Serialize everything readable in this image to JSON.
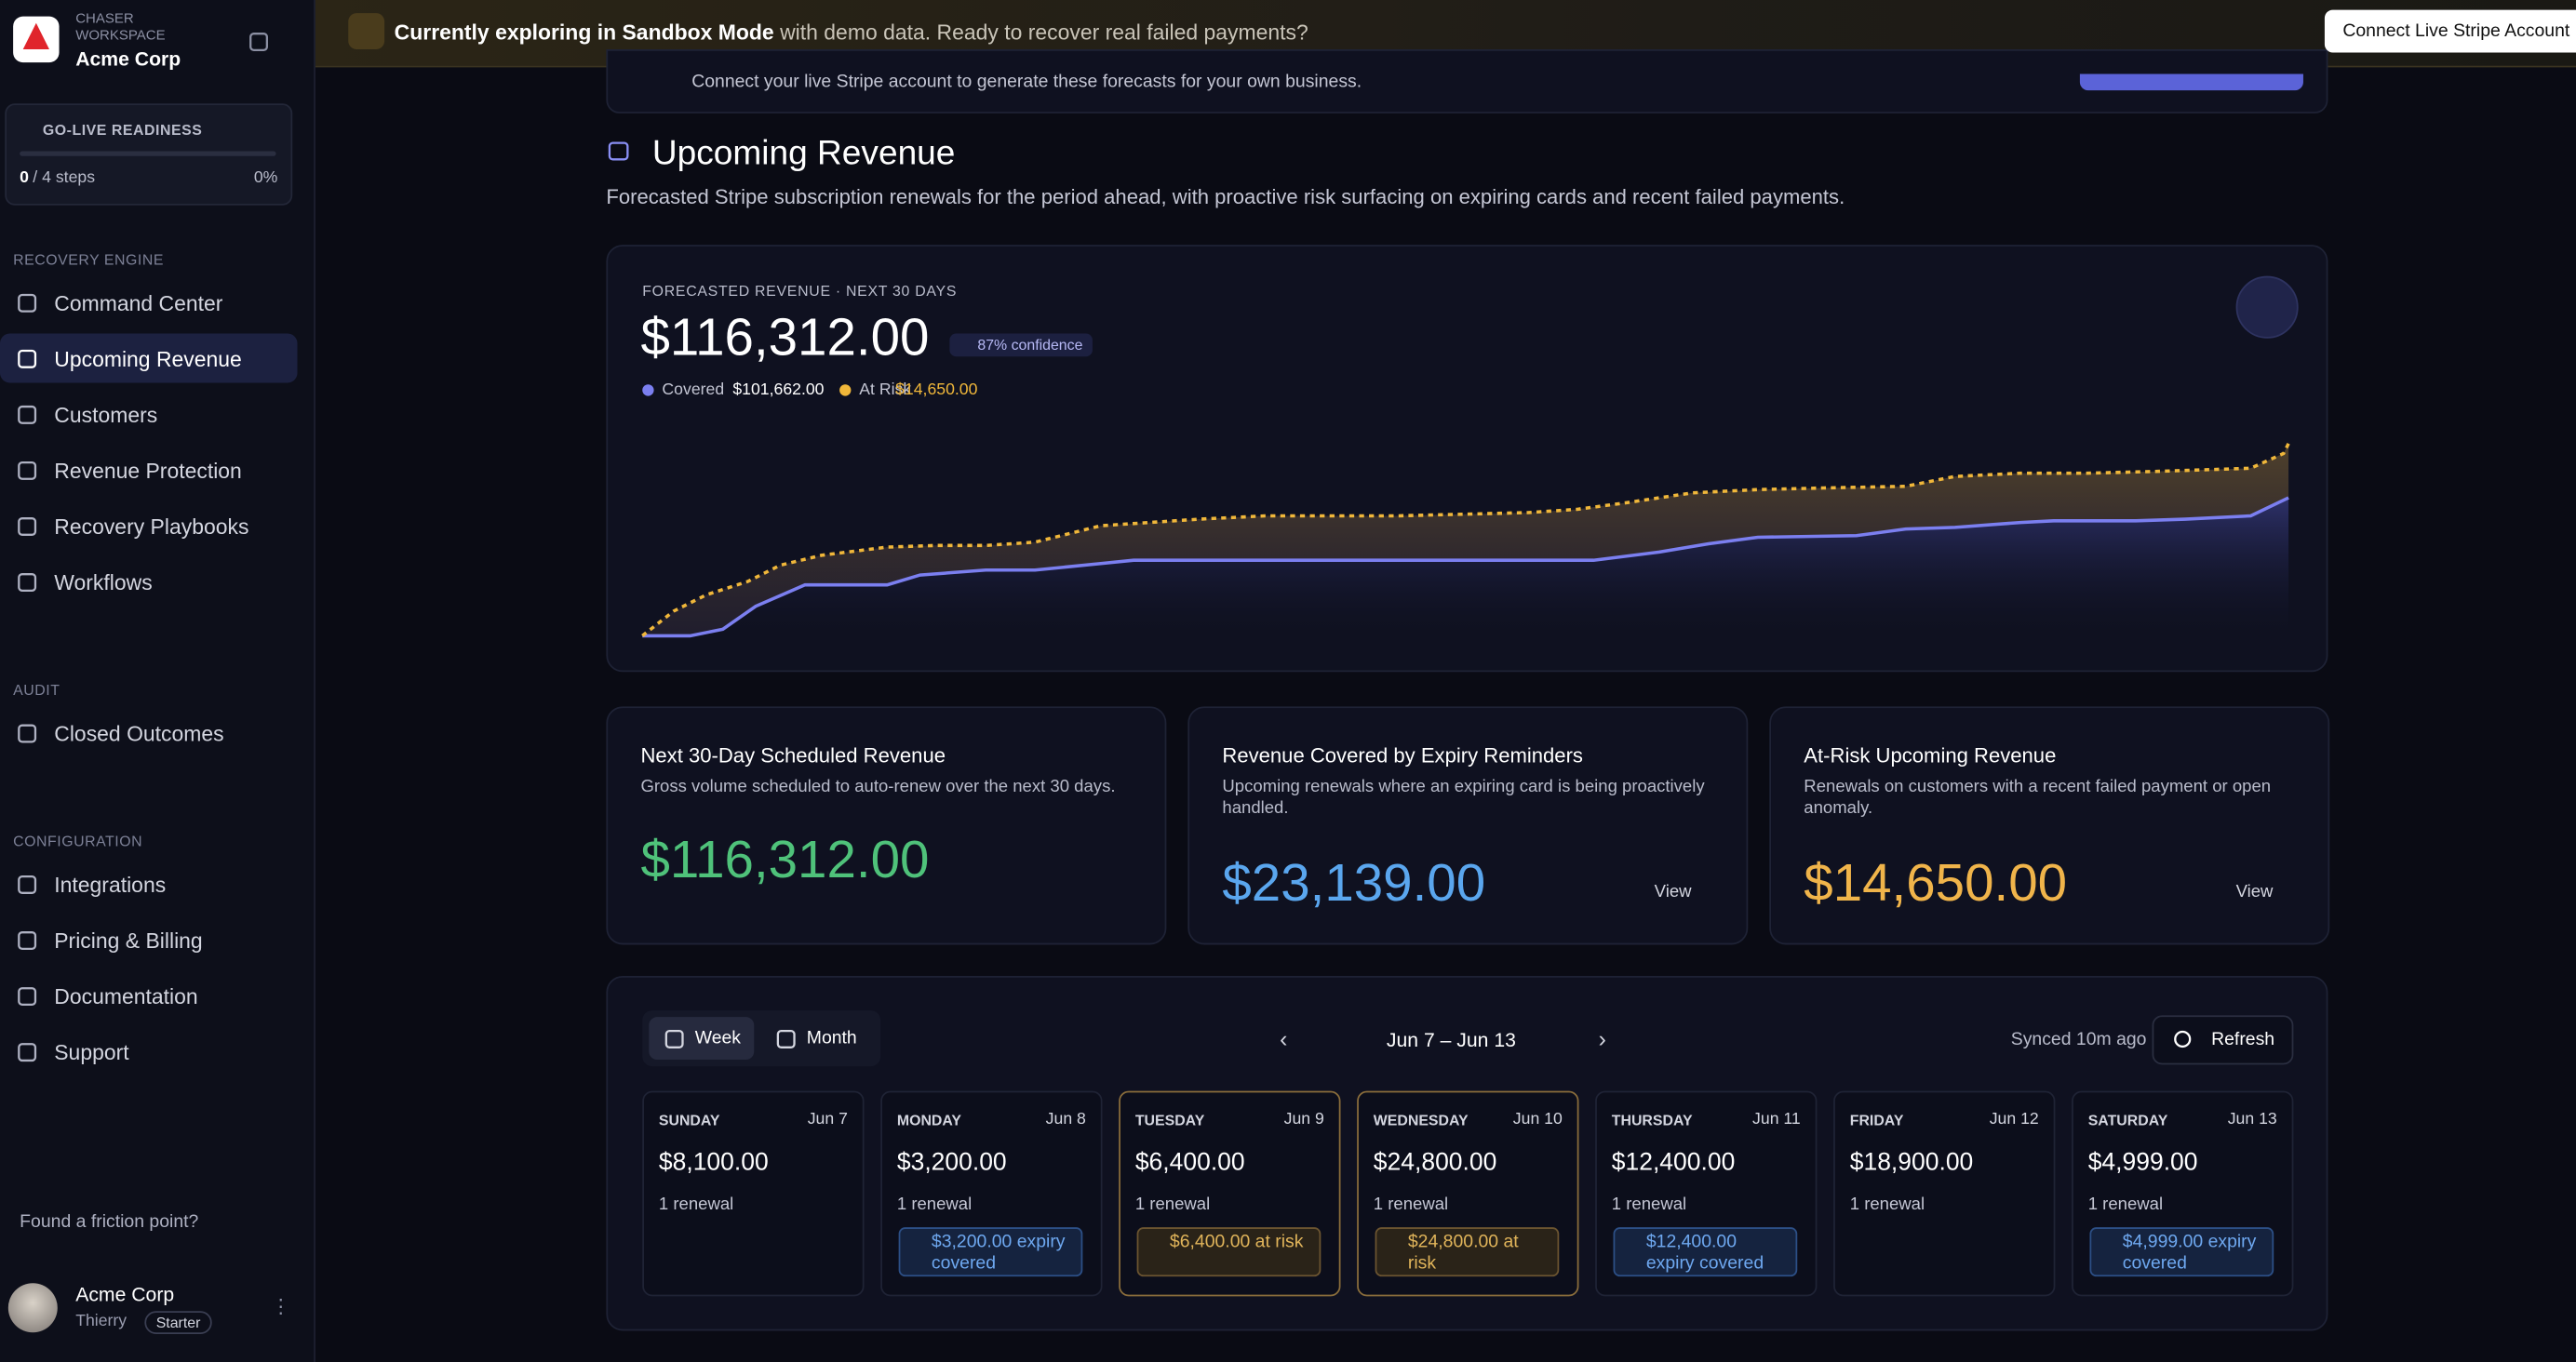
{
  "sidebar": {
    "workspace_label": "CHASER WORKSPACE",
    "workspace": "Acme Corp",
    "readiness": {
      "title": "GO-LIVE READINESS",
      "steps_done": "0",
      "steps_total": "/ 4 steps",
      "percent": "0%"
    },
    "sections": [
      {
        "title": "RECOVERY ENGINE",
        "items": [
          {
            "label": "Command Center"
          },
          {
            "label": "Upcoming Revenue",
            "active": true
          },
          {
            "label": "Customers"
          },
          {
            "label": "Revenue Protection"
          },
          {
            "label": "Recovery Playbooks"
          },
          {
            "label": "Workflows"
          }
        ]
      },
      {
        "title": "AUDIT",
        "items": [
          {
            "label": "Closed Outcomes"
          }
        ]
      },
      {
        "title": "CONFIGURATION",
        "items": [
          {
            "label": "Integrations"
          },
          {
            "label": "Pricing & Billing"
          },
          {
            "label": "Documentation"
          },
          {
            "label": "Support"
          }
        ]
      }
    ],
    "feedback": "Found a friction point?",
    "user": {
      "name": "Acme Corp",
      "person": "Thierry",
      "plan": "Starter"
    }
  },
  "banner": {
    "bold": "Currently exploring in Sandbox Mode",
    "text": "with demo data. Ready to recover real failed payments?",
    "button": "Connect Live Stripe Account"
  },
  "notice": "Connect your live Stripe account to generate these forecasts for your own business.",
  "page": {
    "title": "Upcoming Revenue",
    "subtitle": "Forecasted Stripe subscription renewals for the period ahead, with proactive risk surfacing on expiring cards and recent failed payments."
  },
  "forecast": {
    "label": "FORECASTED REVENUE · NEXT 30 DAYS",
    "total": "$116,312.00",
    "confidence": "87% confidence",
    "legend": [
      {
        "name": "Covered",
        "value": "$101,662.00",
        "color": "#7b7ff0"
      },
      {
        "name": "At Risk",
        "value": "$14,650.00",
        "color": "#f0b73a"
      }
    ]
  },
  "metrics": [
    {
      "title": "Next 30-Day Scheduled Revenue",
      "description": "Gross volume scheduled to auto-renew over the next 30 days.",
      "value": "$116,312.00",
      "color": "#4fc27a"
    },
    {
      "title": "Revenue Covered by Expiry Reminders",
      "description": "Upcoming renewals where an expiring card is being proactively handled.",
      "value": "$23,139.00",
      "color": "#5aa6ee",
      "action": "View"
    },
    {
      "title": "At-Risk Upcoming Revenue",
      "description": "Renewals on customers with a recent failed payment or open anomaly.",
      "value": "$14,650.00",
      "color": "#f0b44a",
      "action": "View"
    }
  ],
  "calendar": {
    "views": [
      "Week",
      "Month"
    ],
    "range": "Jun 7 – Jun 13",
    "synced": "Synced 10m ago",
    "refresh": "Refresh",
    "days": [
      {
        "weekday": "SUNDAY",
        "date": "Jun 7",
        "amount": "$8,100.00",
        "renewals": "1 renewal"
      },
      {
        "weekday": "MONDAY",
        "date": "Jun 8",
        "amount": "$3,200.00",
        "renewals": "1 renewal",
        "badge": "$3,200.00 expiry covered",
        "badge_type": "cover"
      },
      {
        "weekday": "TUESDAY",
        "date": "Jun 9",
        "amount": "$6,400.00",
        "renewals": "1 renewal",
        "badge": "$6,400.00 at risk",
        "badge_type": "risk"
      },
      {
        "weekday": "WEDNESDAY",
        "date": "Jun 10",
        "amount": "$24,800.00",
        "renewals": "1 renewal",
        "badge": "$24,800.00 at risk",
        "badge_type": "risk"
      },
      {
        "weekday": "THURSDAY",
        "date": "Jun 11",
        "amount": "$12,400.00",
        "renewals": "1 renewal",
        "badge": "$12,400.00 expiry covered",
        "badge_type": "cover"
      },
      {
        "weekday": "FRIDAY",
        "date": "Jun 12",
        "amount": "$18,900.00",
        "renewals": "1 renewal"
      },
      {
        "weekday": "SATURDAY",
        "date": "Jun 13",
        "amount": "$4,999.00",
        "renewals": "1 renewal",
        "badge": "$4,999.00 expiry covered",
        "badge_type": "cover"
      }
    ]
  }
}
